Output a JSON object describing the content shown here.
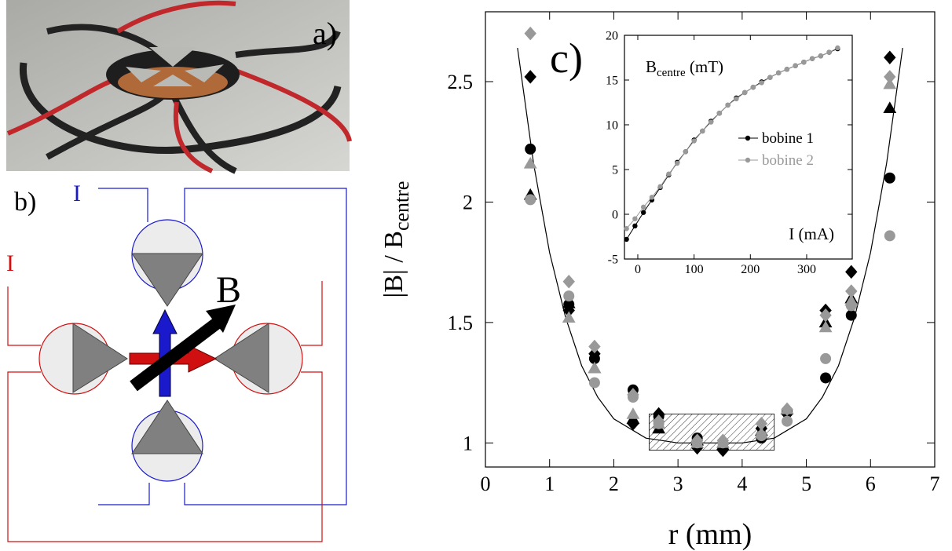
{
  "photo": {
    "label": "a)"
  },
  "diagram": {
    "label": "b)",
    "current_label_blue": "I",
    "current_label_red": "I",
    "field_label": "B"
  },
  "chart_data": [
    {
      "type": "scatter",
      "panel_label": "c)",
      "xlabel": "r (mm)",
      "ylabel": "|B| / B",
      "ylabel_sub": "centre",
      "xlim": [
        0,
        7
      ],
      "xticks": [
        0,
        1,
        2,
        3,
        4,
        5,
        6,
        7
      ],
      "ylim": [
        0.9,
        2.79
      ],
      "yticks": [
        1,
        1.5,
        2,
        2.5
      ],
      "x": [
        0.7,
        1.3,
        1.7,
        2.3,
        2.7,
        3.3,
        3.7,
        4.3,
        4.7,
        5.3,
        5.7,
        6.3
      ],
      "series": [
        {
          "color": "#000000",
          "marker": "circle",
          "values": [
            2.22,
            1.575,
            1.35,
            1.22,
            1.11,
            1.02,
            0.98,
            1.02,
            1.13,
            1.27,
            1.53,
            2.1
          ]
        },
        {
          "color": "#000000",
          "marker": "diamond",
          "values": [
            2.52,
            1.55,
            1.37,
            1.08,
            1.12,
            0.98,
            0.97,
            1.06,
            1.12,
            1.55,
            1.71,
            2.6
          ]
        },
        {
          "color": "#000000",
          "marker": "triangle",
          "values": [
            2.03,
            1.58,
            1.31,
            1.1,
            1.06,
            1.01,
            0.99,
            1.05,
            1.14,
            1.5,
            1.6,
            2.39
          ]
        },
        {
          "color": "#999999",
          "marker": "circle",
          "values": [
            2.01,
            1.61,
            1.25,
            1.19,
            1.08,
            1.0,
            1.0,
            1.03,
            1.09,
            1.35,
            1.57,
            1.86
          ]
        },
        {
          "color": "#999999",
          "marker": "diamond",
          "values": [
            2.7,
            1.67,
            1.4,
            1.2,
            1.09,
            1.01,
            1.01,
            1.08,
            1.14,
            1.53,
            1.63,
            2.52
          ]
        },
        {
          "color": "#999999",
          "marker": "triangle",
          "values": [
            2.16,
            1.52,
            1.31,
            1.12,
            1.08,
            1.0,
            1.0,
            1.04,
            1.14,
            1.48,
            1.59,
            2.49
          ]
        }
      ],
      "fit": {
        "color": "#000000",
        "x": [
          0.5,
          0.75,
          1,
          1.25,
          1.5,
          1.75,
          2,
          2.5,
          3,
          3.5,
          4,
          4.5,
          5,
          5.25,
          5.5,
          5.75,
          6,
          6.25,
          6.5
        ],
        "values": [
          2.64,
          2.16,
          1.79,
          1.52,
          1.32,
          1.19,
          1.1,
          1.02,
          1.0,
          1.0,
          1.0,
          1.02,
          1.1,
          1.19,
          1.32,
          1.52,
          1.79,
          2.16,
          2.64
        ]
      },
      "shaded_region": {
        "x": [
          2.55,
          4.5
        ],
        "y": [
          0.97,
          1.12
        ]
      }
    },
    {
      "type": "line",
      "xlabel": "I (mA)",
      "ylabel": "B",
      "ylabel_sub": "centre",
      "ylabel_unit": " (mT)",
      "xlim": [
        -23.7,
        381
      ],
      "xticks": [
        0,
        100,
        200,
        300
      ],
      "ylim": [
        -5,
        20
      ],
      "yticks": [
        -5,
        0,
        5,
        10,
        15,
        20
      ],
      "legend": "right",
      "x": [
        -20,
        -5,
        10,
        25,
        40,
        55,
        70,
        85,
        100,
        115,
        130,
        145,
        160,
        175,
        190,
        205,
        220,
        235,
        250,
        265,
        280,
        295,
        310,
        325,
        340,
        355
      ],
      "series": [
        {
          "name": "bobine 1",
          "color": "#000000",
          "values": [
            -2.8,
            -1.3,
            0.2,
            1.6,
            3.0,
            4.4,
            5.8,
            7.0,
            8.3,
            9.3,
            10.4,
            11.3,
            12.2,
            13.0,
            13.6,
            14.2,
            14.8,
            15.3,
            15.8,
            16.2,
            16.6,
            17.0,
            17.4,
            17.7,
            18.1,
            18.5
          ]
        },
        {
          "name": "bobine 2",
          "color": "#999999",
          "values": [
            -1.6,
            -0.5,
            0.8,
            1.9,
            3.1,
            4.5,
            5.7,
            7.0,
            8.2,
            9.3,
            10.3,
            11.3,
            12.2,
            12.9,
            13.6,
            14.2,
            14.7,
            15.3,
            15.8,
            16.2,
            16.6,
            17.0,
            17.4,
            17.7,
            18.1,
            18.6
          ]
        }
      ]
    }
  ]
}
